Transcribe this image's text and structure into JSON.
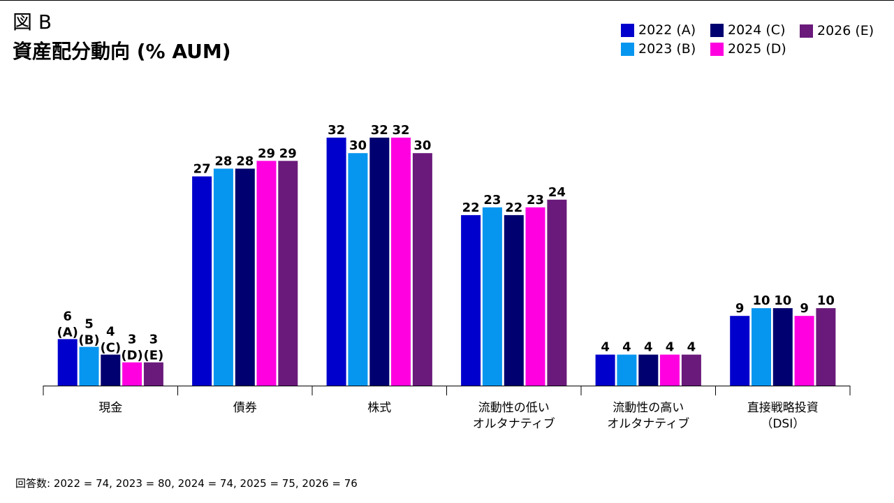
{
  "header": {
    "figure_label": "図 B",
    "title": "資産配分動向 (% AUM)"
  },
  "chart_data": {
    "type": "bar",
    "title": "資産配分動向 (% AUM)",
    "xlabel": "",
    "ylabel": "",
    "ylim": [
      0,
      32
    ],
    "grid": false,
    "legend_position": "top-right",
    "categories": [
      [
        "現金"
      ],
      [
        "債券"
      ],
      [
        "株式"
      ],
      [
        "流動性の低い",
        "オルタナティブ"
      ],
      [
        "流動性の高い",
        "オルタナティブ"
      ],
      [
        "直接戦略投資",
        "（DSI）"
      ]
    ],
    "series": [
      {
        "name": "2022 (A)",
        "color": "#0000cc",
        "values": [
          6,
          27,
          32,
          22,
          4,
          9
        ]
      },
      {
        "name": "2023 (B)",
        "color": "#0696f0",
        "values": [
          5,
          28,
          30,
          23,
          4,
          10
        ]
      },
      {
        "name": "2024 (C)",
        "color": "#000070",
        "values": [
          4,
          28,
          32,
          22,
          4,
          10
        ]
      },
      {
        "name": "2025 (D)",
        "color": "#ff00e0",
        "values": [
          3,
          29,
          32,
          23,
          4,
          9
        ]
      },
      {
        "name": "2026 (E)",
        "color": "#6a1a7a",
        "values": [
          3,
          29,
          30,
          24,
          4,
          10
        ]
      }
    ],
    "first_category_labels": [
      "6\n(A)",
      "5\n(B)",
      "4\n(C)",
      "3\n(D)",
      "3\n(E)"
    ]
  },
  "footnote": "回答数: 2022 = 74, 2023 = 80, 2024 = 74, 2025 = 75, 2026 = 76"
}
